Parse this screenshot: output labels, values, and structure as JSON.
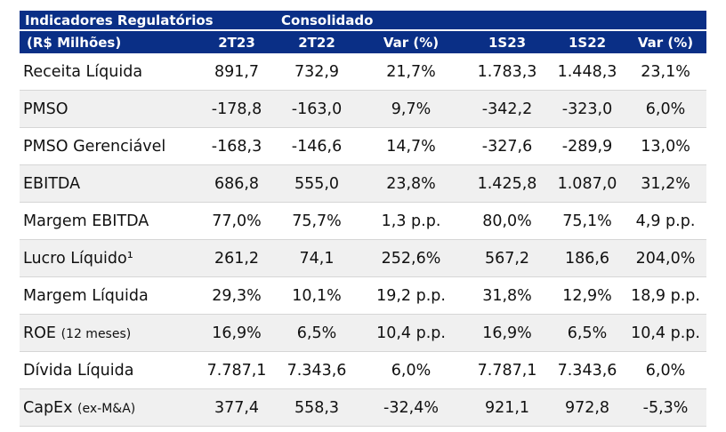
{
  "header": {
    "title": "Indicadores Regulatórios",
    "group": "Consolidado",
    "units": "(R$ Milhões)",
    "columns": [
      "2T23",
      "2T22",
      "Var (%)",
      "1S23",
      "1S22",
      "Var (%)"
    ]
  },
  "rows": [
    {
      "label": "Receita Líquida",
      "note": "",
      "values": [
        "891,7",
        "732,9",
        "21,7%",
        "1.783,3",
        "1.448,3",
        "23,1%"
      ]
    },
    {
      "label": "PMSO",
      "note": "",
      "values": [
        "-178,8",
        "-163,0",
        "9,7%",
        "-342,2",
        "-323,0",
        "6,0%"
      ]
    },
    {
      "label": "PMSO Gerenciável",
      "note": "",
      "values": [
        "-168,3",
        "-146,6",
        "14,7%",
        "-327,6",
        "-289,9",
        "13,0%"
      ]
    },
    {
      "label": "EBITDA",
      "note": "",
      "values": [
        "686,8",
        "555,0",
        "23,8%",
        "1.425,8",
        "1.087,0",
        "31,2%"
      ]
    },
    {
      "label": "Margem EBITDA",
      "note": "",
      "values": [
        "77,0%",
        "75,7%",
        "1,3 p.p.",
        "80,0%",
        "75,1%",
        "4,9 p.p."
      ]
    },
    {
      "label": "Lucro Líquido¹",
      "note": "",
      "values": [
        "261,2",
        "74,1",
        "252,6%",
        "567,2",
        "186,6",
        "204,0%"
      ]
    },
    {
      "label": "Margem Líquida",
      "note": "",
      "values": [
        "29,3%",
        "10,1%",
        "19,2 p.p.",
        "31,8%",
        "12,9%",
        "18,9 p.p."
      ]
    },
    {
      "label": "ROE",
      "note": "(12 meses)",
      "values": [
        "16,9%",
        "6,5%",
        "10,4 p.p.",
        "16,9%",
        "6,5%",
        "10,4 p.p."
      ]
    },
    {
      "label": "Dívida Líquida",
      "note": "",
      "values": [
        "7.787,1",
        "7.343,6",
        "6,0%",
        "7.787,1",
        "7.343,6",
        "6,0%"
      ]
    },
    {
      "label": "CapEx",
      "note": "(ex-M&A)",
      "values": [
        "377,4",
        "558,3",
        "-32,4%",
        "921,1",
        "972,8",
        "-5,3%"
      ]
    }
  ]
}
